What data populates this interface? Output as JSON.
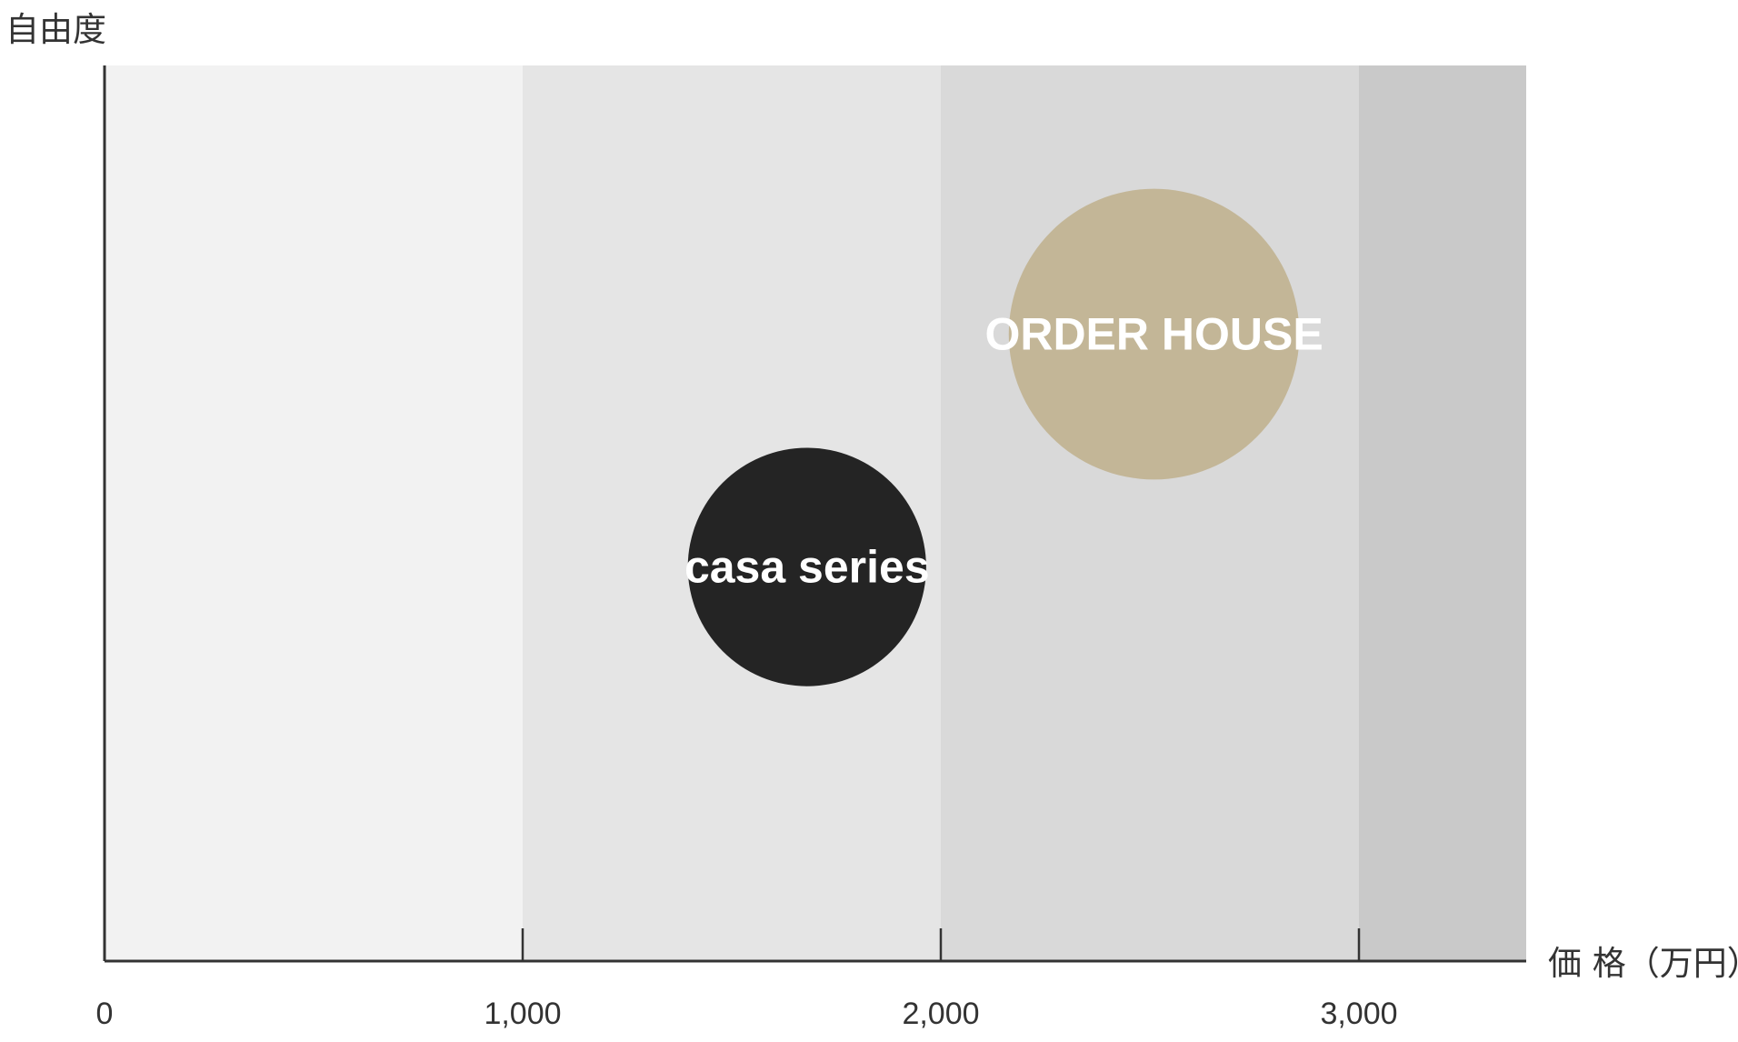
{
  "chart_data": {
    "type": "bubble",
    "ylabel": "自由度",
    "xlabel": "価 格（万円）",
    "xlim": [
      0,
      3400
    ],
    "ylim": [
      0,
      100
    ],
    "x_ticks": [
      0,
      1000,
      2000,
      3000
    ],
    "x_tick_labels": [
      "0",
      "1,000",
      "2,000",
      "3,000"
    ],
    "bands": [
      {
        "from": 0,
        "to": 1000,
        "color": "#f2f2f2"
      },
      {
        "from": 1000,
        "to": 2000,
        "color": "#e5e5e5"
      },
      {
        "from": 2000,
        "to": 3000,
        "color": "#d9d9d9"
      },
      {
        "from": 3000,
        "to": 3400,
        "color": "#c9c9c9"
      }
    ],
    "series": [
      {
        "name": "casa series",
        "x": 1680,
        "y": 44,
        "r": 570,
        "color": "#242424",
        "opacity": 1.0
      },
      {
        "name": "ORDER HOUSE",
        "x": 2510,
        "y": 70,
        "r": 695,
        "color": "#bfb08c",
        "opacity": 0.86
      }
    ]
  }
}
